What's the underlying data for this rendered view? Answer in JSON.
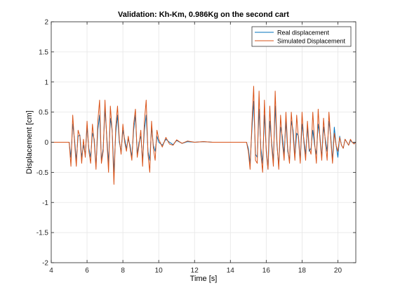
{
  "chart_data": {
    "type": "line",
    "title": "Validation: Kh-Km, 0.986Kg on the second cart",
    "xlabel": "Time [s]",
    "ylabel": "Displacement [cm]",
    "xlim": [
      4,
      21
    ],
    "ylim": [
      -2,
      2
    ],
    "xticks": [
      4,
      6,
      8,
      10,
      12,
      14,
      16,
      18,
      20
    ],
    "yticks": [
      -2,
      -1.5,
      -1,
      -0.5,
      0,
      0.5,
      1,
      1.5,
      2
    ],
    "xtick_labels": [
      "4",
      "6",
      "8",
      "10",
      "12",
      "14",
      "16",
      "18",
      "20"
    ],
    "ytick_labels": [
      "-2",
      "-1.5",
      "-1",
      "-0.5",
      "0",
      "0.5",
      "1",
      "1.5",
      "2"
    ],
    "grid": true,
    "legend_position": "top-right",
    "series": [
      {
        "name": "Real displacement",
        "color": "#0072BD",
        "x": [
          4.0,
          5.0,
          5.1,
          5.2,
          5.3,
          5.4,
          5.5,
          5.6,
          5.7,
          5.8,
          5.9,
          6.0,
          6.1,
          6.2,
          6.3,
          6.4,
          6.5,
          6.6,
          6.7,
          6.8,
          6.9,
          7.0,
          7.1,
          7.2,
          7.3,
          7.4,
          7.5,
          7.6,
          7.7,
          7.8,
          7.9,
          8.0,
          8.1,
          8.2,
          8.3,
          8.4,
          8.5,
          8.6,
          8.7,
          8.8,
          8.9,
          9.0,
          9.1,
          9.2,
          9.3,
          9.4,
          9.5,
          9.6,
          9.7,
          9.8,
          9.9,
          10.0,
          10.2,
          10.4,
          10.6,
          10.8,
          11.0,
          11.3,
          11.6,
          12.0,
          12.5,
          13.0,
          14.0,
          14.9,
          15.0,
          15.1,
          15.2,
          15.3,
          15.4,
          15.5,
          15.6,
          15.7,
          15.8,
          15.9,
          16.0,
          16.1,
          16.2,
          16.3,
          16.4,
          16.5,
          16.6,
          16.7,
          16.8,
          16.9,
          17.0,
          17.1,
          17.2,
          17.3,
          17.4,
          17.5,
          17.6,
          17.7,
          17.8,
          17.9,
          18.0,
          18.1,
          18.2,
          18.3,
          18.4,
          18.5,
          18.6,
          18.7,
          18.8,
          18.9,
          19.0,
          19.1,
          19.2,
          19.3,
          19.4,
          19.5,
          19.6,
          19.7,
          19.8,
          19.9,
          20.0,
          20.1,
          20.2,
          20.3,
          20.4,
          20.5,
          20.6,
          20.7,
          20.8,
          20.9,
          21.0
        ],
        "y": [
          0.0,
          0.0,
          -0.25,
          0.3,
          0.05,
          -0.3,
          0.1,
          0.12,
          -0.25,
          -0.05,
          -0.2,
          0.25,
          -0.1,
          -0.25,
          0.15,
          0.05,
          -0.4,
          0.2,
          0.45,
          -0.3,
          -0.1,
          0.55,
          0.1,
          -0.35,
          0.4,
          0.2,
          -0.5,
          0.15,
          0.45,
          0.0,
          -0.15,
          0.2,
          0.05,
          -0.1,
          0.05,
          -0.05,
          -0.25,
          0.2,
          0.45,
          -0.2,
          0.0,
          0.1,
          -0.3,
          0.2,
          0.45,
          -0.15,
          -0.3,
          0.25,
          -0.05,
          -0.15,
          0.1,
          0.0,
          -0.05,
          0.05,
          0.0,
          -0.04,
          0.03,
          -0.02,
          0.01,
          0.0,
          0.01,
          0.0,
          0.0,
          0.0,
          -0.1,
          -0.35,
          0.2,
          0.68,
          -0.2,
          -0.25,
          0.55,
          -0.1,
          -0.35,
          0.45,
          -0.1,
          -0.45,
          0.35,
          0.0,
          -0.3,
          0.6,
          -0.05,
          -0.4,
          0.25,
          0.1,
          -0.2,
          0.35,
          -0.15,
          -0.3,
          0.35,
          0.2,
          -0.25,
          0.15,
          0.1,
          -0.3,
          0.3,
          0.05,
          -0.2,
          0.25,
          -0.15,
          -0.1,
          0.2,
          -0.05,
          -0.2,
          0.3,
          0.1,
          -0.25,
          0.25,
          0.05,
          -0.15,
          0.35,
          0.1,
          -0.3,
          0.25,
          -0.05,
          -0.25,
          0.1,
          -0.05,
          -0.1,
          0.05,
          0.0,
          -0.05,
          0.03,
          0.0,
          -0.02,
          0.0
        ]
      },
      {
        "name": "Simulated Displacement",
        "color": "#D95319",
        "x": [
          4.0,
          5.0,
          5.1,
          5.2,
          5.3,
          5.4,
          5.5,
          5.6,
          5.7,
          5.8,
          5.9,
          6.0,
          6.1,
          6.2,
          6.3,
          6.4,
          6.5,
          6.6,
          6.7,
          6.8,
          6.9,
          7.0,
          7.1,
          7.2,
          7.3,
          7.4,
          7.5,
          7.6,
          7.7,
          7.8,
          7.9,
          8.0,
          8.1,
          8.2,
          8.3,
          8.4,
          8.5,
          8.6,
          8.7,
          8.8,
          8.9,
          9.0,
          9.1,
          9.2,
          9.3,
          9.4,
          9.5,
          9.6,
          9.7,
          9.8,
          9.9,
          10.0,
          10.2,
          10.4,
          10.6,
          10.8,
          11.0,
          11.3,
          11.6,
          12.0,
          12.5,
          13.0,
          14.0,
          14.9,
          15.0,
          15.1,
          15.2,
          15.3,
          15.4,
          15.5,
          15.6,
          15.7,
          15.8,
          15.9,
          16.0,
          16.1,
          16.2,
          16.3,
          16.4,
          16.5,
          16.6,
          16.7,
          16.8,
          16.9,
          17.0,
          17.1,
          17.2,
          17.3,
          17.4,
          17.5,
          17.6,
          17.7,
          17.8,
          17.9,
          18.0,
          18.1,
          18.2,
          18.3,
          18.4,
          18.5,
          18.6,
          18.7,
          18.8,
          18.9,
          19.0,
          19.1,
          19.2,
          19.3,
          19.4,
          19.5,
          19.6,
          19.7,
          19.8,
          19.9,
          20.0,
          20.1,
          20.2,
          20.3,
          20.4,
          20.5,
          20.6,
          20.7,
          20.8,
          20.9,
          21.0
        ],
        "y": [
          0.0,
          0.0,
          -0.4,
          0.45,
          0.0,
          -0.4,
          0.2,
          0.1,
          -0.35,
          0.05,
          -0.25,
          0.35,
          -0.15,
          -0.35,
          0.3,
          0.0,
          -0.45,
          0.35,
          0.7,
          -0.35,
          -0.15,
          0.7,
          0.05,
          -0.5,
          0.6,
          0.2,
          -0.7,
          0.25,
          0.6,
          0.05,
          -0.2,
          0.3,
          0.0,
          -0.15,
          0.1,
          -0.1,
          -0.3,
          0.3,
          0.55,
          -0.25,
          -0.05,
          0.2,
          -0.4,
          0.35,
          0.7,
          -0.2,
          -0.5,
          0.35,
          -0.1,
          -0.3,
          0.2,
          0.05,
          -0.08,
          0.08,
          -0.03,
          -0.05,
          0.04,
          -0.02,
          0.02,
          0.0,
          0.01,
          0.0,
          0.0,
          0.0,
          -0.15,
          -0.45,
          0.3,
          0.93,
          -0.3,
          -0.35,
          0.85,
          -0.2,
          -0.5,
          0.7,
          -0.15,
          -0.45,
          0.6,
          -0.05,
          -0.4,
          0.85,
          0.0,
          -0.45,
          0.45,
          0.0,
          -0.3,
          0.5,
          -0.1,
          -0.35,
          0.5,
          0.1,
          -0.3,
          0.45,
          0.05,
          -0.35,
          0.5,
          0.0,
          -0.3,
          0.35,
          -0.1,
          -0.2,
          0.5,
          0.0,
          -0.35,
          0.55,
          0.05,
          -0.3,
          0.4,
          0.0,
          -0.3,
          0.5,
          0.05,
          -0.35,
          0.15,
          -0.05,
          -0.15,
          0.08,
          -0.05,
          -0.1,
          0.05,
          0.0,
          -0.05,
          0.05,
          0.0,
          -0.03,
          0.0
        ]
      }
    ]
  }
}
